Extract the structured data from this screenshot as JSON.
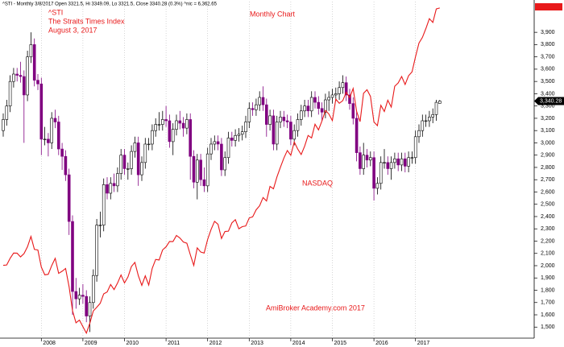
{
  "chart_data": {
    "type": "candlestick",
    "header": "^STI - Monthly 3/8/2017 Open 3321.5, Hi 3349.09, Lo 3321.5, Close 3340.28 (0.3%) ^nic = 6,362.65",
    "title": "Monthly Chart",
    "annotations": [
      "^STI",
      "The Straits Times Index",
      "August 3, 2017"
    ],
    "footer": "AmiBroker Academy.com  2017",
    "last_close_label": "3,340.28",
    "up_color": "#ffffff",
    "down_color": "#800080",
    "grid": true,
    "categories": [
      null,
      null,
      null,
      null,
      null,
      null,
      null,
      null,
      null,
      null,
      null,
      "2008",
      null,
      null,
      null,
      null,
      null,
      null,
      null,
      null,
      null,
      null,
      null,
      "2009",
      null,
      null,
      null,
      null,
      null,
      null,
      null,
      null,
      null,
      null,
      null,
      "2010",
      null,
      null,
      null,
      null,
      null,
      null,
      null,
      null,
      null,
      null,
      null,
      "2011",
      null,
      null,
      null,
      null,
      null,
      null,
      null,
      null,
      null,
      null,
      null,
      "2012",
      null,
      null,
      null,
      null,
      null,
      null,
      null,
      null,
      null,
      null,
      null,
      "2013",
      null,
      null,
      null,
      null,
      null,
      null,
      null,
      null,
      null,
      null,
      null,
      "2014",
      null,
      null,
      null,
      null,
      null,
      null,
      null,
      null,
      null,
      null,
      null,
      "2015",
      null,
      null,
      null,
      null,
      null,
      null,
      null,
      null,
      null,
      null,
      null,
      "2016",
      null,
      null,
      null,
      null,
      null,
      null,
      null,
      null,
      null,
      null,
      null,
      "2017",
      null,
      null,
      null,
      null,
      null,
      null,
      null
    ],
    "open": [
      3100,
      3190,
      3300,
      3500,
      3560,
      3550,
      3540,
      3390,
      3700,
      3800,
      3510,
      3480,
      3030,
      3030,
      3000,
      3200,
      3170,
      2950,
      2890,
      2740,
      2360,
      1790,
      1730,
      1760,
      1750,
      1590,
      1700,
      1920,
      2330,
      2330,
      2660,
      2590,
      2670,
      2650,
      2750,
      2900,
      2790,
      2790,
      2930,
      3000,
      2740,
      2840,
      2990,
      2990,
      3100,
      3150,
      3150,
      3190,
      3180,
      3010,
      3110,
      3180,
      3160,
      3120,
      3190,
      2890,
      2680,
      2860,
      2700,
      2650,
      2910,
      2990,
      3010,
      2990,
      2780,
      2880,
      3040,
      3020,
      3060,
      3070,
      3090,
      3170,
      3280,
      3270,
      3310,
      3370,
      3310,
      3150,
      3220,
      2990,
      3170,
      3210,
      3180,
      3170,
      3030,
      3100,
      3190,
      3260,
      3300,
      3260,
      3370,
      3330,
      3280,
      3250,
      3350,
      3370,
      3390,
      3400,
      3450,
      3490,
      3390,
      3320,
      3200,
      2920,
      2790,
      2900,
      2860,
      2880,
      2630,
      2670,
      2840,
      2840,
      2790,
      2840,
      2870,
      2820,
      2870,
      2810,
      2880,
      2880,
      3050,
      3100,
      3180,
      3180,
      3210,
      3230,
      3321.5
    ],
    "high": [
      3240,
      3350,
      3550,
      3610,
      3610,
      3660,
      3590,
      3750,
      3900,
      3850,
      3560,
      3530,
      3130,
      3080,
      3250,
      3270,
      3220,
      3000,
      2940,
      2790,
      2410,
      1900,
      1820,
      1850,
      1800,
      1750,
      1970,
      2380,
      2440,
      2710,
      2720,
      2720,
      2750,
      2800,
      2950,
      2950,
      2840,
      2980,
      3050,
      3050,
      2890,
      3040,
      3040,
      3150,
      3200,
      3250,
      3260,
      3300,
      3230,
      3160,
      3230,
      3260,
      3210,
      3240,
      3240,
      2940,
      2910,
      2910,
      2800,
      2960,
      3040,
      3060,
      3060,
      3040,
      2930,
      3090,
      3090,
      3110,
      3120,
      3140,
      3220,
      3330,
      3330,
      3360,
      3420,
      3460,
      3360,
      3270,
      3270,
      3220,
      3260,
      3260,
      3230,
      3220,
      3150,
      3240,
      3310,
      3350,
      3350,
      3420,
      3420,
      3380,
      3330,
      3400,
      3420,
      3440,
      3450,
      3500,
      3550,
      3540,
      3440,
      3370,
      3250,
      2970,
      3000,
      2950,
      2930,
      2930,
      2720,
      2890,
      2950,
      2890,
      2890,
      2920,
      2920,
      2920,
      2920,
      2930,
      2930,
      3100,
      3150,
      3230,
      3230,
      3260,
      3280,
      3350,
      3349.09
    ],
    "low": [
      3050,
      3140,
      3250,
      3450,
      3500,
      3490,
      3000,
      3340,
      3650,
      3460,
      3430,
      2900,
      2980,
      2890,
      2950,
      3120,
      2900,
      2780,
      2690,
      2250,
      1600,
      1650,
      1680,
      1690,
      1540,
      1460,
      1650,
      1870,
      2230,
      2280,
      2540,
      2540,
      2600,
      2600,
      2700,
      2740,
      2700,
      2740,
      2880,
      2650,
      2690,
      2790,
      2940,
      2940,
      3050,
      3100,
      3100,
      3130,
      2960,
      2900,
      3060,
      3110,
      3050,
      3070,
      2700,
      2630,
      2540,
      2650,
      2600,
      2600,
      2860,
      2940,
      2940,
      2730,
      2730,
      2830,
      2970,
      2970,
      3010,
      3020,
      3040,
      3120,
      3220,
      3220,
      3260,
      3260,
      3050,
      3100,
      2940,
      2940,
      3120,
      3130,
      3120,
      2980,
      2980,
      3050,
      3140,
      3210,
      3210,
      3210,
      3280,
      3230,
      3180,
      3200,
      3260,
      3320,
      3340,
      3350,
      3400,
      3340,
      3270,
      3150,
      2850,
      2740,
      2740,
      2800,
      2810,
      2530,
      2580,
      2620,
      2790,
      2740,
      2700,
      2790,
      2770,
      2770,
      2760,
      2760,
      2830,
      2830,
      3000,
      3050,
      3130,
      3130,
      3160,
      3180,
      3321.5
    ],
    "close": [
      3190,
      3300,
      3500,
      3560,
      3550,
      3540,
      3390,
      3700,
      3800,
      3510,
      3480,
      3030,
      3030,
      3000,
      3200,
      3170,
      2950,
      2890,
      2740,
      2360,
      1790,
      1730,
      1760,
      1750,
      1590,
      1700,
      1920,
      2330,
      2330,
      2660,
      2590,
      2670,
      2650,
      2750,
      2900,
      2790,
      2790,
      2930,
      3000,
      2740,
      2840,
      2990,
      2990,
      3100,
      3150,
      3150,
      3190,
      3180,
      3010,
      3110,
      3180,
      3160,
      3120,
      3190,
      2890,
      2680,
      2860,
      2700,
      2650,
      2910,
      2990,
      3010,
      2990,
      2780,
      2880,
      3040,
      3020,
      3060,
      3070,
      3090,
      3170,
      3280,
      3270,
      3310,
      3370,
      3310,
      3150,
      3220,
      2990,
      3170,
      3210,
      3180,
      3170,
      3030,
      3100,
      3190,
      3260,
      3300,
      3260,
      3370,
      3330,
      3280,
      3250,
      3350,
      3370,
      3390,
      3400,
      3450,
      3490,
      3390,
      3320,
      3200,
      2920,
      2790,
      2900,
      2860,
      2880,
      2630,
      2670,
      2840,
      2840,
      2790,
      2840,
      2870,
      2820,
      2870,
      2810,
      2880,
      2880,
      3050,
      3100,
      3180,
      3180,
      3210,
      3230,
      3330,
      3340.28
    ],
    "series": [
      {
        "name": "NASDAQ",
        "color": "#e8191a",
        "axis": "y2",
        "values": [
          2416,
          2422,
          2525,
          2605,
          2603,
          2546,
          2596,
          2701,
          2859,
          2661,
          2652,
          2389,
          2271,
          2279,
          2413,
          2523,
          2293,
          2326,
          2368,
          2092,
          1721,
          1536,
          1577,
          1476,
          1377,
          1529,
          1717,
          1774,
          1835,
          1979,
          2009,
          2122,
          2045,
          2145,
          2269,
          2147,
          2238,
          2398,
          2461,
          2257,
          2109,
          2255,
          2114,
          2369,
          2507,
          2498,
          2653,
          2700,
          2782,
          2781,
          2874,
          2835,
          2774,
          2756,
          2579,
          2415,
          2684,
          2620,
          2605,
          2814,
          2967,
          3091,
          3046,
          2827,
          2935,
          2940,
          3067,
          3116,
          2977,
          3010,
          3020,
          3142,
          3160,
          3268,
          3329,
          3456,
          3403,
          3626,
          3590,
          3771,
          3920,
          4060,
          4177,
          4104,
          4308,
          4199,
          4115,
          4243,
          4408,
          4370,
          4580,
          4493,
          4631,
          4792,
          4736,
          4635,
          4964,
          4901,
          4941,
          5070,
          4987,
          5128,
          4777,
          4620,
          5054,
          5109,
          5007,
          4614,
          4558,
          4870,
          4775,
          4948,
          4843,
          5162,
          5213,
          5312,
          5189,
          5324,
          5383,
          5615,
          5825,
          5912,
          6048,
          6199,
          6140,
          6348,
          6362.65
        ]
      }
    ],
    "ylim": [
      1410,
      4150
    ],
    "y2lim": [
      1300,
      6460
    ],
    "yticks": [
      {
        "value": 1500,
        "label": "1,500"
      },
      {
        "value": 1600,
        "label": "1,600"
      },
      {
        "value": 1700,
        "label": "1,700"
      },
      {
        "value": 1800,
        "label": "1,800"
      },
      {
        "value": 1900,
        "label": "1,900"
      },
      {
        "value": 2000,
        "label": "2,000"
      },
      {
        "value": 2100,
        "label": "2,100"
      },
      {
        "value": 2200,
        "label": "2,200"
      },
      {
        "value": 2300,
        "label": "2,300"
      },
      {
        "value": 2400,
        "label": "2,400"
      },
      {
        "value": 2500,
        "label": "2,500"
      },
      {
        "value": 2600,
        "label": "2,600"
      },
      {
        "value": 2700,
        "label": "2,700"
      },
      {
        "value": 2800,
        "label": "2,800"
      },
      {
        "value": 2900,
        "label": "2,900"
      },
      {
        "value": 3000,
        "label": "3,000"
      },
      {
        "value": 3100,
        "label": "3,100"
      },
      {
        "value": 3200,
        "label": "3,200"
      },
      {
        "value": 3300,
        "label": "3,300"
      },
      {
        "value": 3400,
        "label": "3,400"
      },
      {
        "value": 3500,
        "label": "3,500"
      },
      {
        "value": 3600,
        "label": "3,600"
      },
      {
        "value": 3700,
        "label": "3,700"
      },
      {
        "value": 3800,
        "label": "3,800"
      },
      {
        "value": 3900,
        "label": "3,900"
      }
    ]
  }
}
